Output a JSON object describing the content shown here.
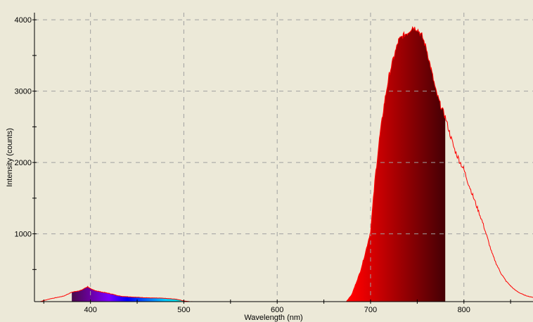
{
  "chart_data": {
    "type": "area",
    "xlabel": "Wavelength (nm)",
    "ylabel": "Intensity (counts)",
    "xlim": [
      340,
      874
    ],
    "ylim": [
      50,
      4100
    ],
    "xticks": [
      400,
      500,
      600,
      700,
      800
    ],
    "yticks": [
      1000,
      2000,
      3000,
      4000
    ],
    "grid": true,
    "colored_fill_range_nm": [
      380,
      780
    ],
    "colors": {
      "background": "#ece9d8",
      "line": "#ff0000",
      "grid": "#a0a0a0"
    },
    "series": [
      {
        "x": [
          346,
          356,
          371,
          380,
          390,
          397,
          401,
          409,
          420,
          432,
          447,
          462,
          477,
          492,
          501,
          507,
          540,
          600,
          650,
          674,
          680,
          689,
          695,
          700,
          705,
          710,
          715,
          720,
          725,
          730,
          735,
          740,
          745,
          750,
          755,
          760,
          765,
          770,
          775,
          780,
          785,
          790,
          795,
          800,
          805,
          810,
          815,
          820,
          825,
          830,
          835,
          840,
          845,
          850,
          855,
          860,
          865,
          870,
          874
        ],
        "y": [
          50,
          87,
          126,
          182,
          209,
          260,
          221,
          192,
          165,
          126,
          113,
          103,
          98,
          84,
          57,
          50,
          45,
          42,
          42,
          50,
          150,
          468,
          760,
          1030,
          1790,
          2380,
          2850,
          3230,
          3480,
          3710,
          3780,
          3820,
          3900,
          3870,
          3780,
          3590,
          3300,
          3000,
          2800,
          2640,
          2400,
          2180,
          2030,
          1900,
          1700,
          1520,
          1340,
          1160,
          950,
          730,
          570,
          440,
          340,
          270,
          210,
          170,
          140,
          120,
          110
        ]
      }
    ]
  }
}
